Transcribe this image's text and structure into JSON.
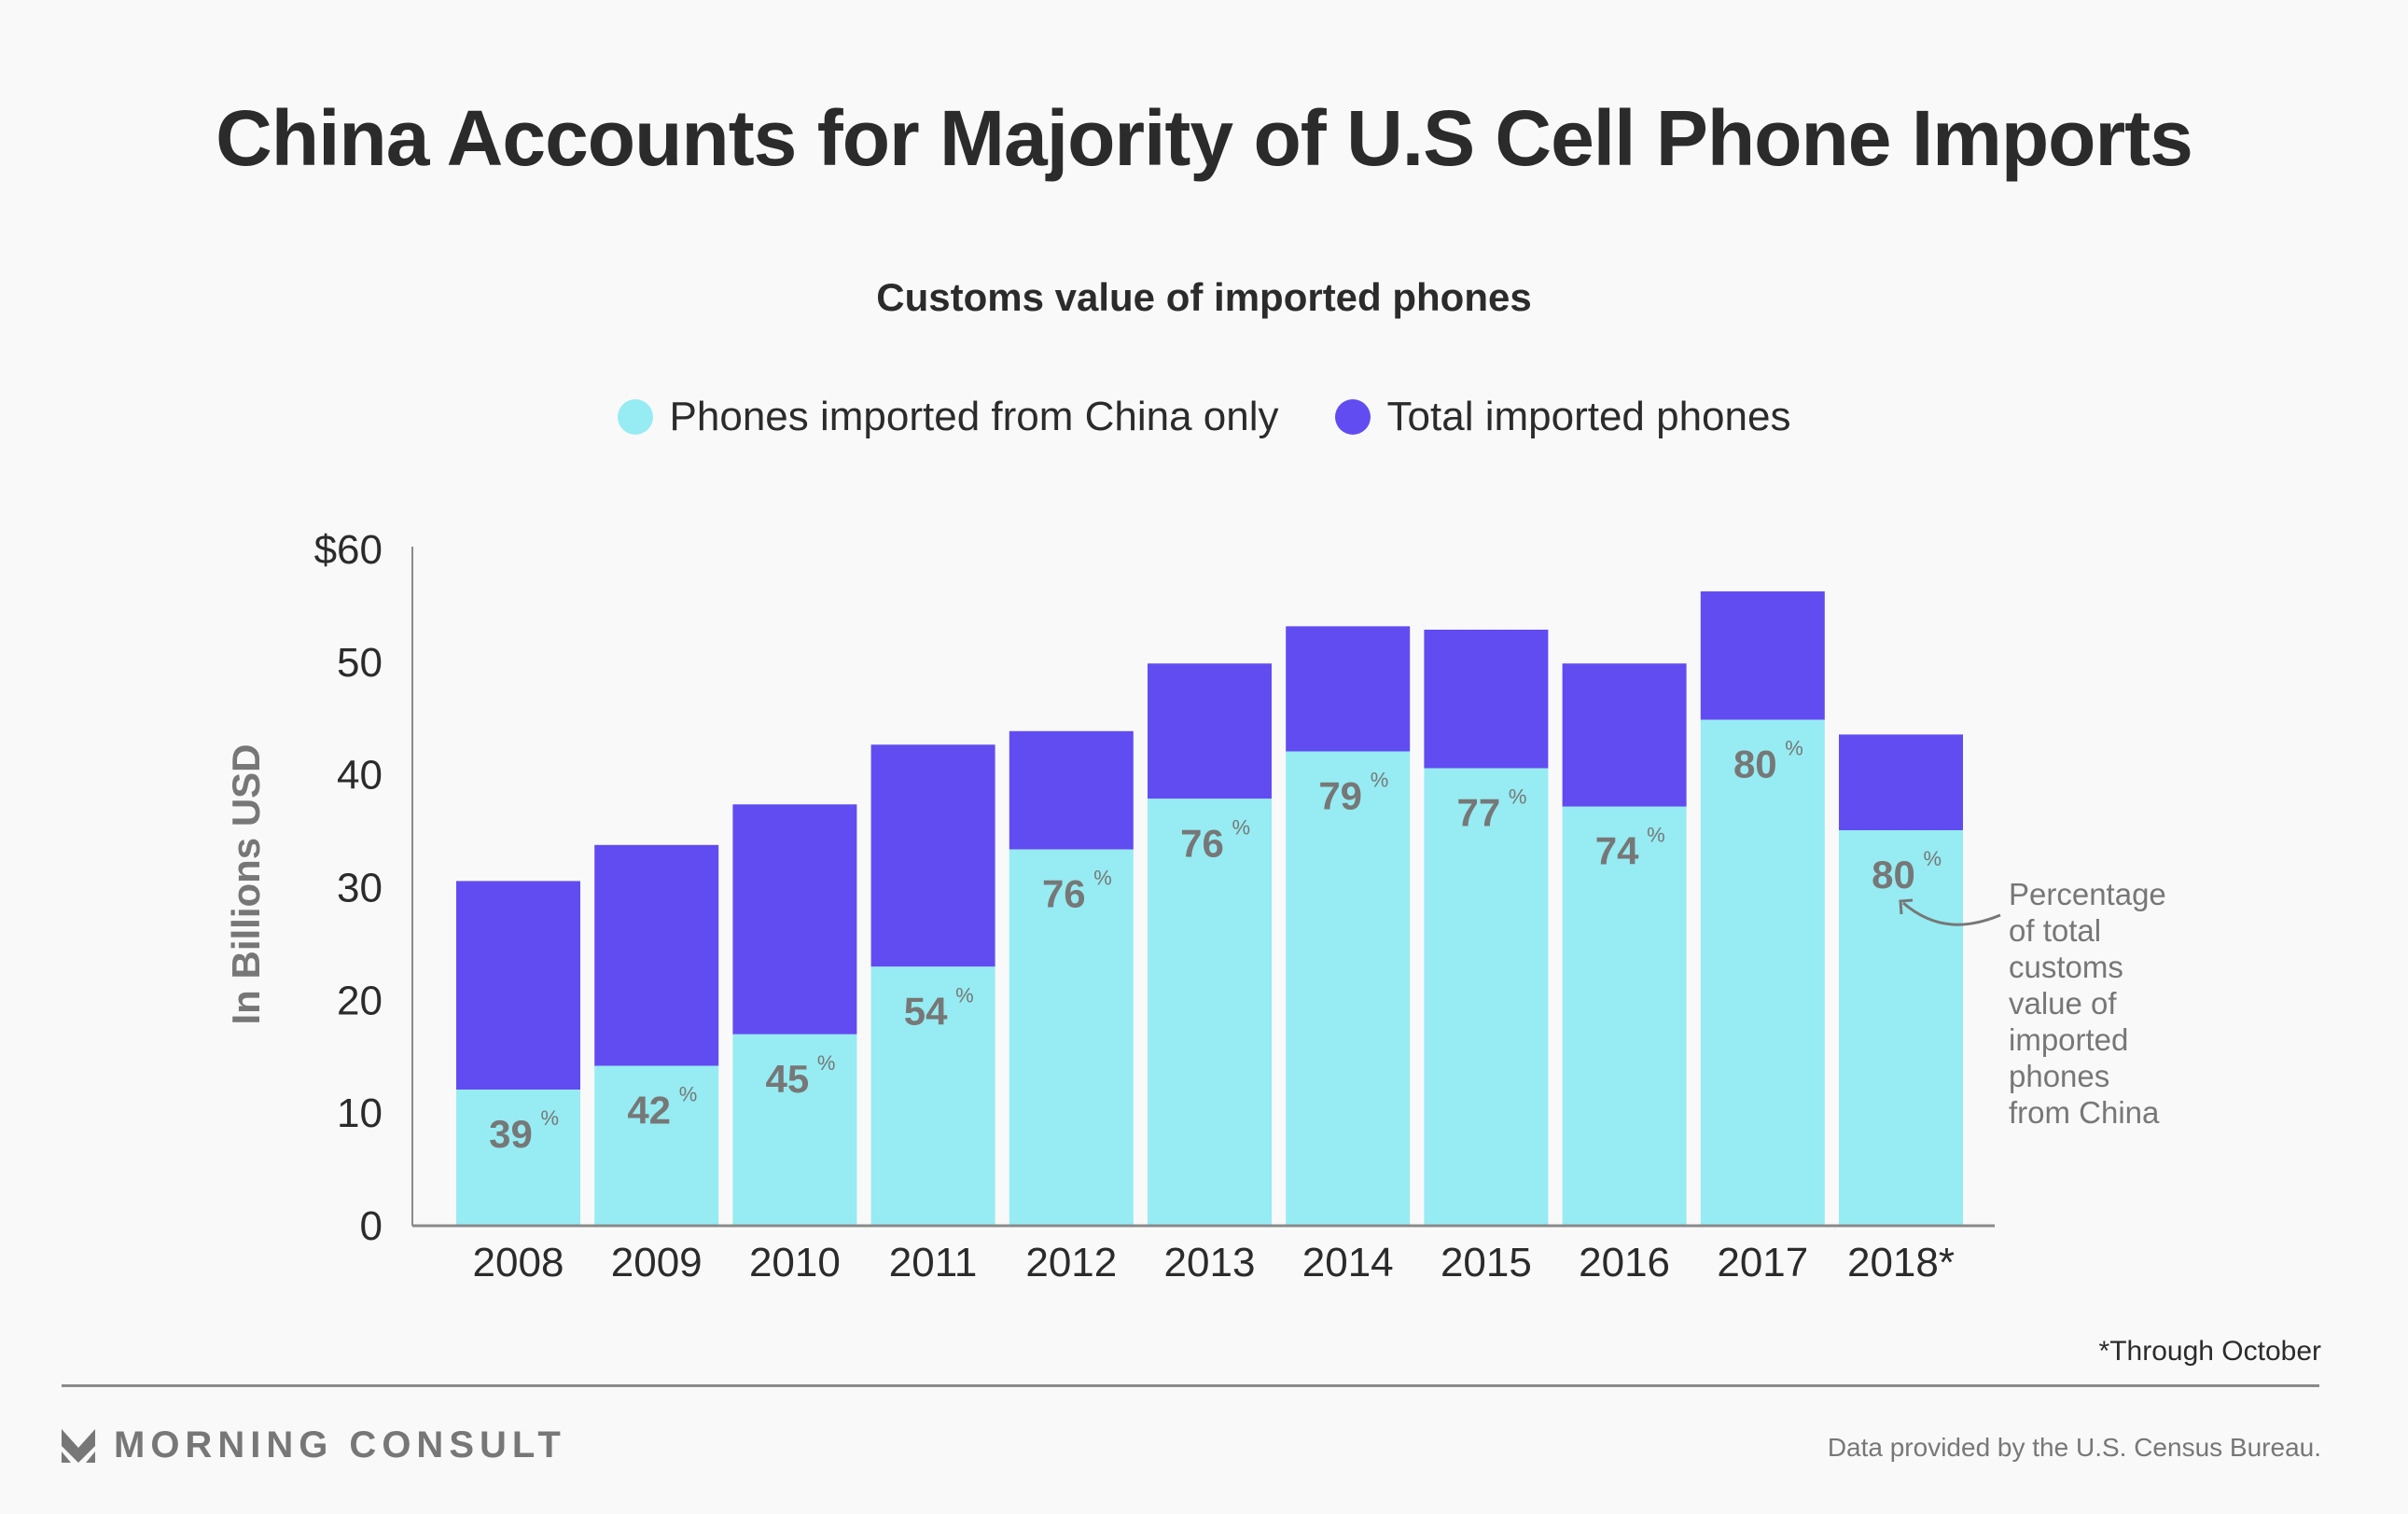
{
  "header": {
    "title": "China Accounts for Majority of U.S Cell Phone Imports",
    "subtitle": "Customs value of imported phones"
  },
  "legend": [
    {
      "label": "Phones imported from China only",
      "color": "#96ecf2"
    },
    {
      "label": "Total imported phones",
      "color": "#614cf2"
    }
  ],
  "chart_data": {
    "type": "bar",
    "stacked": true,
    "title": "Customs value of imported phones",
    "xlabel": "",
    "ylabel": "In Billions USD",
    "ylim": [
      0,
      60
    ],
    "yticks": [
      0,
      10,
      20,
      30,
      40,
      50,
      60
    ],
    "ytick_labels": [
      "0",
      "10",
      "20",
      "30",
      "40",
      "50",
      "$60"
    ],
    "grid": false,
    "legend_position": "top-center",
    "categories": [
      "2008",
      "2009",
      "2010",
      "2011",
      "2012",
      "2013",
      "2014",
      "2015",
      "2016",
      "2017",
      "2018*"
    ],
    "series": [
      {
        "name": "Phones imported from China only",
        "color": "#96ecf2",
        "values": [
          12.0,
          14.1,
          16.9,
          22.9,
          33.3,
          37.8,
          42.0,
          40.5,
          37.1,
          44.8,
          35.0
        ]
      },
      {
        "name": "Total imported phones",
        "color": "#614cf2",
        "values": [
          30.5,
          33.7,
          37.3,
          42.6,
          43.8,
          49.8,
          53.1,
          52.8,
          49.8,
          56.2,
          43.5
        ]
      }
    ],
    "data_labels": [
      "39",
      "42",
      "45",
      "54",
      "76",
      "76",
      "79",
      "77",
      "74",
      "80",
      "80"
    ],
    "data_label_suffix": "%",
    "annotation": "Percentage of total customs value of imported phones from China",
    "annotation_lines": [
      "Percentage",
      "of total",
      "customs",
      "value of",
      "imported",
      "phones",
      "from China"
    ]
  },
  "footer": {
    "footnote": "*Through October",
    "brand": "MORNING CONSULT",
    "source": "Data provided by the U.S. Census Bureau."
  }
}
